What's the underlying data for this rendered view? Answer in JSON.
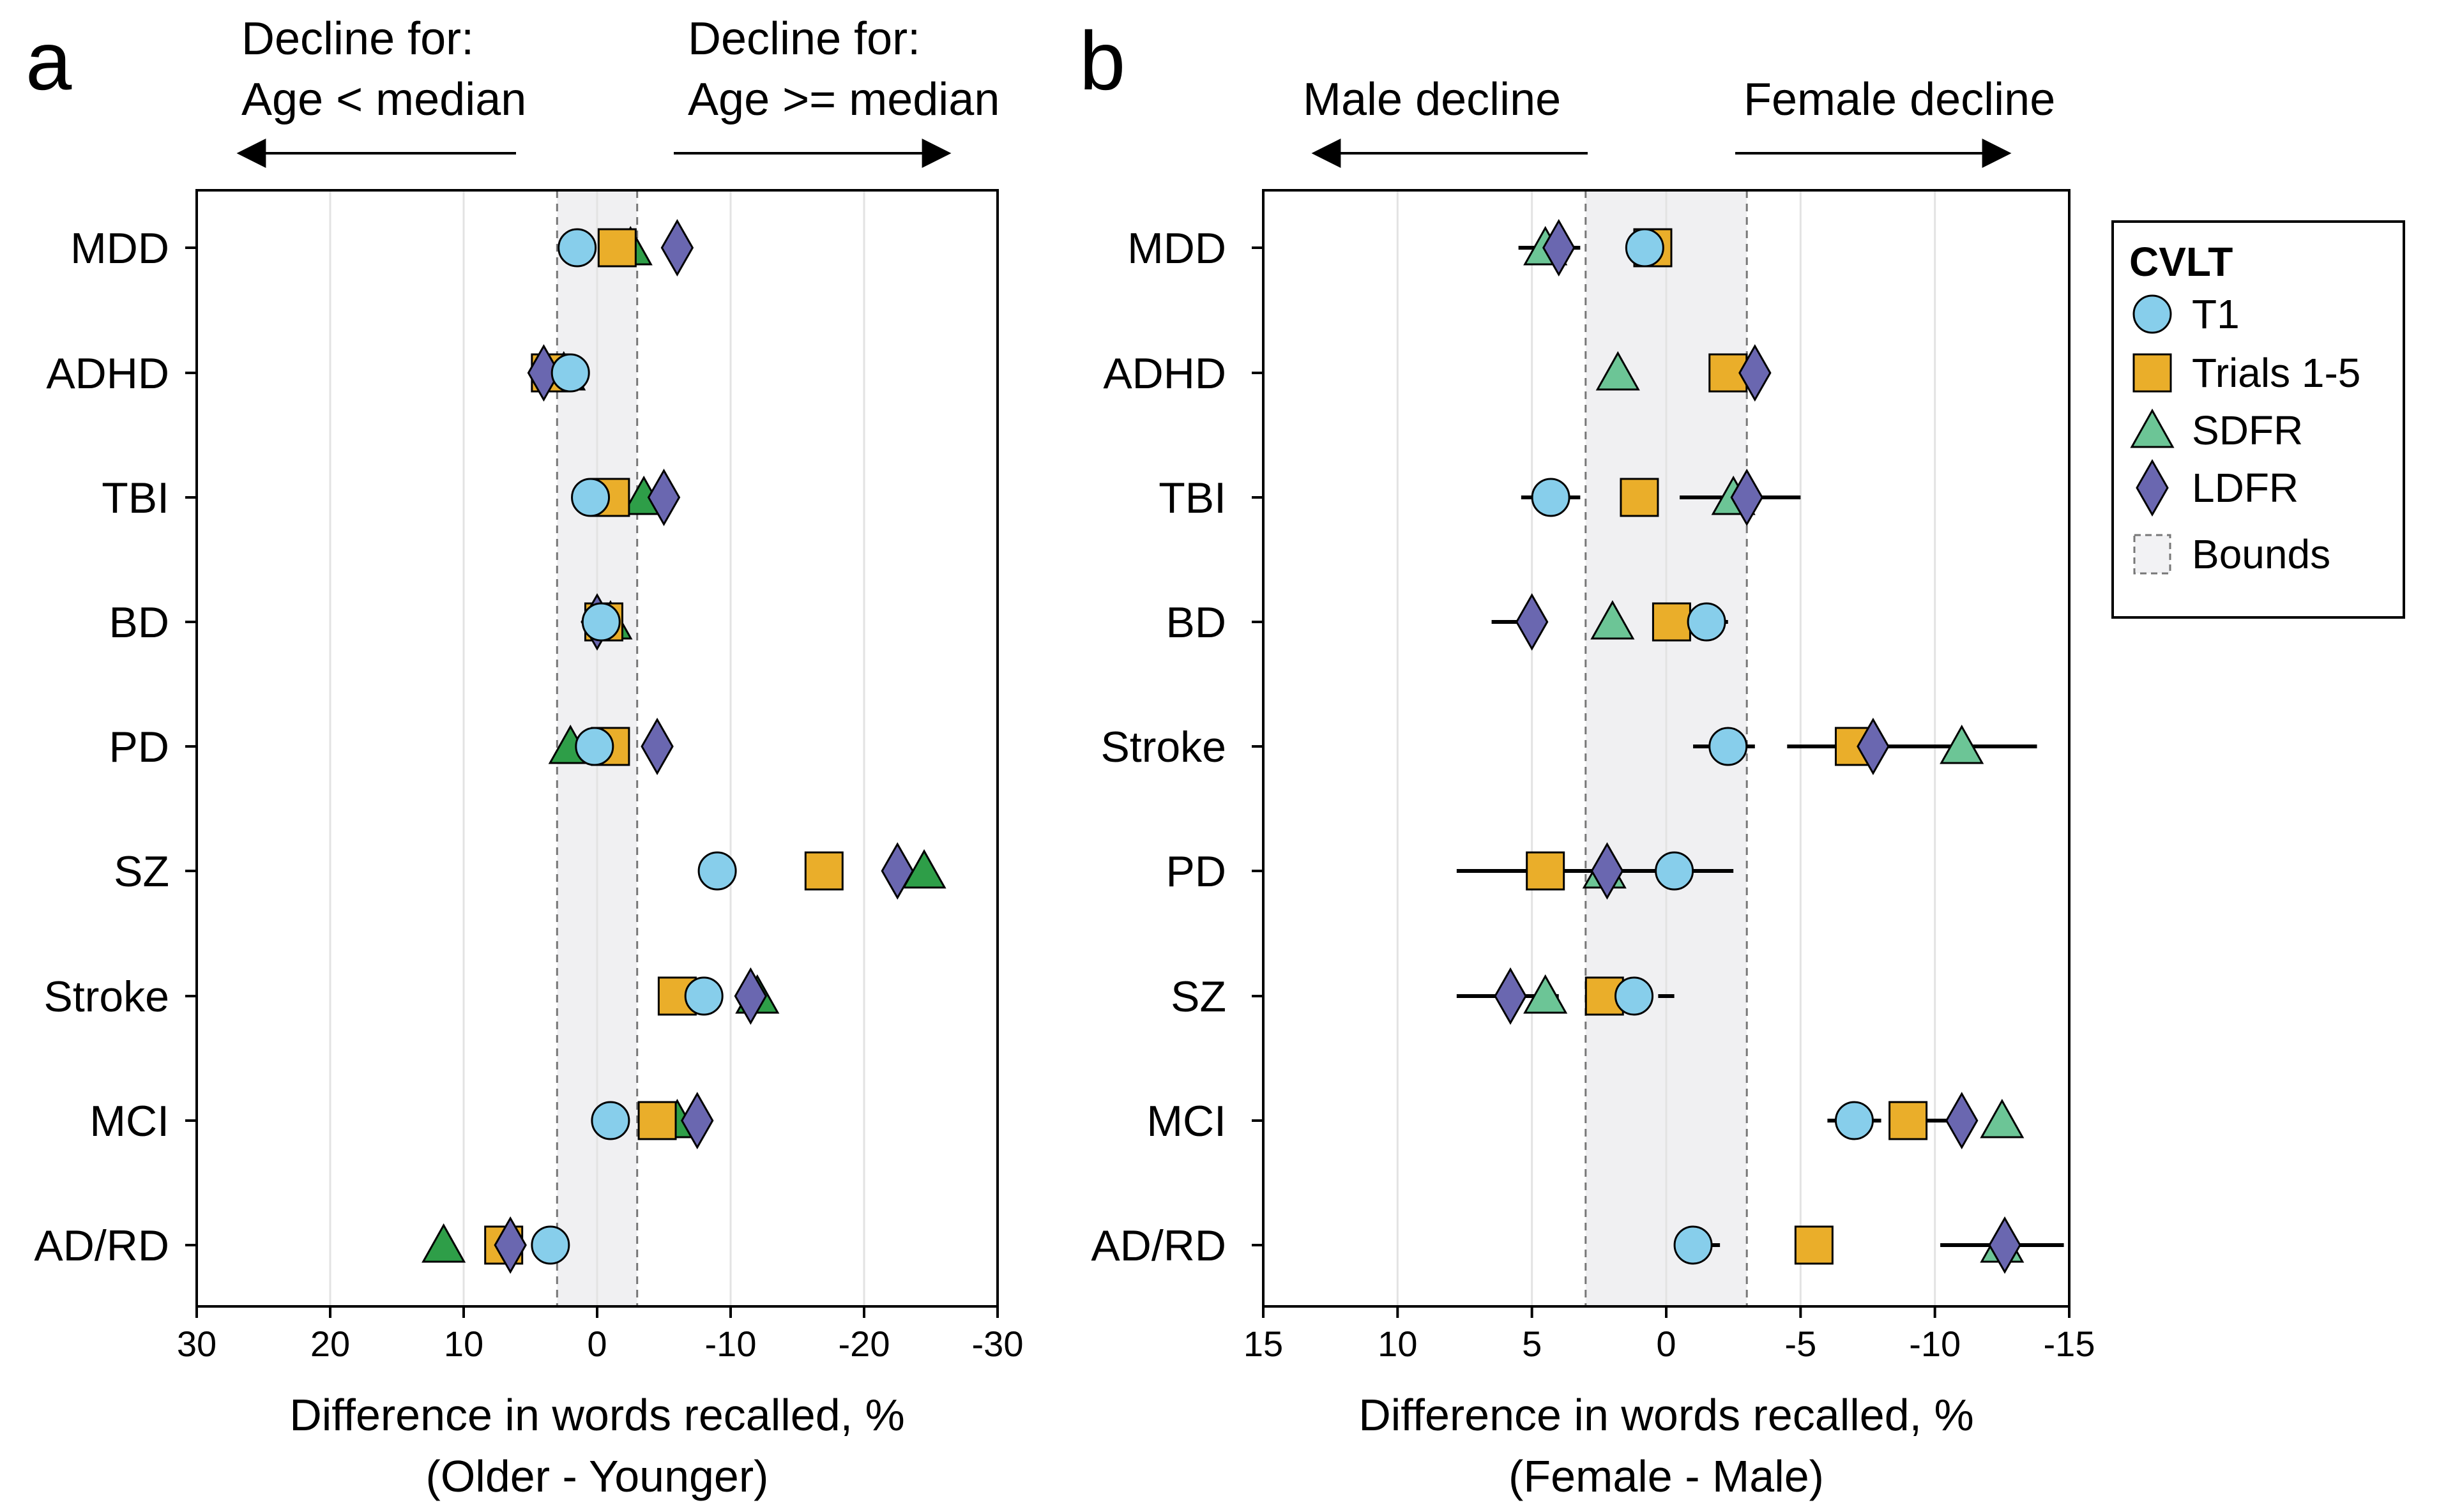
{
  "chart_data": [
    {
      "panel": "a",
      "type": "scatter",
      "categories": [
        "MDD",
        "ADHD",
        "TBI",
        "BD",
        "PD",
        "SZ",
        "Stroke",
        "MCI",
        "AD/RD"
      ],
      "series": [
        {
          "name": "T1",
          "values": [
            1.5,
            2.0,
            0.5,
            -0.3,
            0.2,
            -9.0,
            -8.0,
            -1.0,
            3.5
          ]
        },
        {
          "name": "Trials 1-5",
          "values": [
            -1.5,
            3.5,
            -1.0,
            -0.5,
            -1.0,
            -17.0,
            -6.0,
            -4.5,
            7.0
          ]
        },
        {
          "name": "SDFR",
          "values": [
            -2.5,
            2.5,
            -3.5,
            -1.0,
            2.0,
            -24.5,
            -12.0,
            -6.0,
            11.5
          ]
        },
        {
          "name": "LDFR",
          "values": [
            -6.0,
            4.0,
            -5.0,
            0.0,
            -4.5,
            -22.5,
            -11.5,
            -7.5,
            6.5
          ]
        }
      ],
      "arrows": {
        "left": [
          "Decline for:",
          "Age < median"
        ],
        "right": [
          "Decline for:",
          "Age >= median"
        ]
      },
      "xlabel": [
        "Difference in words recalled, %",
        "(Older - Younger)"
      ],
      "xticks": [
        "30",
        "20",
        "10",
        "0",
        "-10",
        "-20",
        "-30"
      ],
      "xlim": [
        30,
        -30
      ],
      "bounds": [
        3,
        -3
      ]
    },
    {
      "panel": "b",
      "type": "scatter",
      "categories": [
        "MDD",
        "ADHD",
        "TBI",
        "BD",
        "Stroke",
        "PD",
        "SZ",
        "MCI",
        "AD/RD"
      ],
      "series": [
        {
          "name": "T1",
          "values": [
            0.8,
            null,
            4.3,
            -1.5,
            -2.3,
            -0.3,
            1.2,
            -7.0,
            -1.0
          ]
        },
        {
          "name": "Trials 1-5",
          "values": [
            0.5,
            -2.3,
            1.0,
            -0.2,
            -7.0,
            4.5,
            2.3,
            -9.0,
            -5.5
          ]
        },
        {
          "name": "SDFR",
          "values": [
            4.5,
            1.8,
            -2.5,
            2.0,
            -11.0,
            2.3,
            4.5,
            -12.5,
            -12.5
          ]
        },
        {
          "name": "LDFR",
          "values": [
            4.0,
            -3.3,
            -3.0,
            5.0,
            -7.7,
            2.2,
            5.8,
            -11.0,
            -12.6
          ]
        }
      ],
      "error_bars": {
        "T1": [
          [
            5.5,
            3.2
          ],
          null,
          [
            5.4,
            3.2
          ],
          [
            -1.0,
            -2.3
          ],
          [
            -1.0,
            -3.3
          ],
          null,
          [
            0.3,
            -0.3
          ],
          [
            -6.0,
            -8.0
          ],
          [
            -0.3,
            -2.0
          ]
        ],
        "LDFR": [
          null,
          null,
          [
            -0.5,
            -5.0
          ],
          [
            6.5,
            4.5
          ],
          [
            -4.5,
            -13.8
          ],
          [
            7.8,
            -2.5
          ],
          [
            7.8,
            4.0
          ],
          [
            -9.5,
            -11.5
          ],
          [
            -10.2,
            -14.8
          ]
        ]
      },
      "arrows": {
        "left": [
          "Male decline"
        ],
        "right": [
          "Female decline"
        ]
      },
      "xlabel": [
        "Difference in words recalled, %",
        "(Female - Male)"
      ],
      "xticks": [
        "15",
        "10",
        "5",
        "0",
        "-5",
        "-10",
        "-15"
      ],
      "xlim": [
        15,
        -15
      ],
      "bounds": [
        3,
        -3
      ]
    }
  ],
  "legend": {
    "title": "CVLT",
    "items": [
      {
        "label": "T1",
        "shape": "circle",
        "color": "#87CEEB"
      },
      {
        "label": "Trials 1-5",
        "shape": "square",
        "color": "#EAAE2A"
      },
      {
        "label": "SDFR",
        "shape": "triangle",
        "color": "#6CC596"
      },
      {
        "label": "LDFR",
        "shape": "diamond",
        "color": "#6A67B0"
      },
      {
        "label": "Bounds",
        "shape": "bounds",
        "color": "#F2F2F4"
      }
    ]
  },
  "colors": {
    "t1": "#87CEEB",
    "trials": "#EAAE2A",
    "sdfr_a": "#2E9E48",
    "sdfr_b": "#6CC596",
    "ldfr": "#6A67B0",
    "bounds": "#F0F0F2"
  }
}
